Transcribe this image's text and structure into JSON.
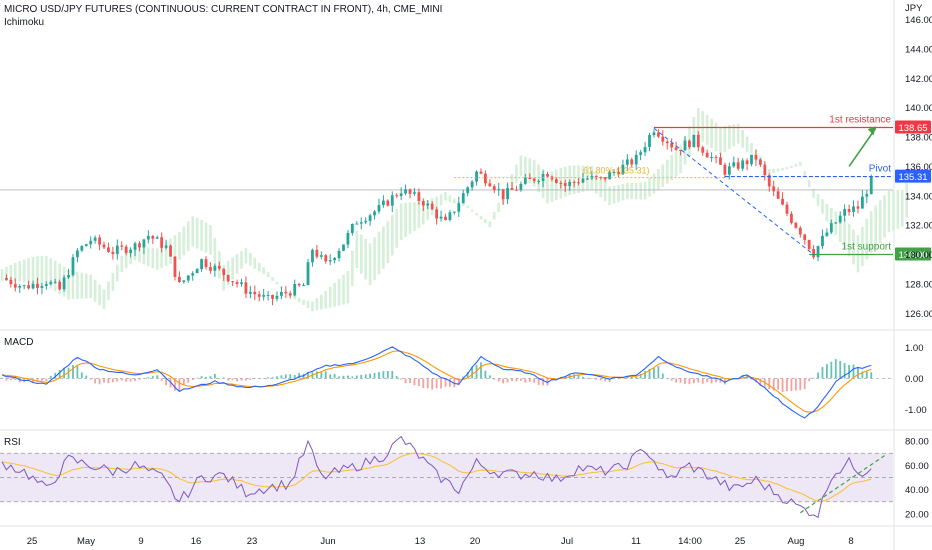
{
  "header": {
    "title": "MICRO USD/JPY FUTURES (CONTINUOUS: CURRENT CONTRACT IN FRONT), 4h, CME_MINI",
    "indicator": "Ichimoku",
    "currency": "JPY"
  },
  "panels": {
    "macd_label": "MACD",
    "rsi_label": "RSI"
  },
  "colors": {
    "up": "#26a69a",
    "down": "#ef5350",
    "resistance": "#f23645",
    "pivot": "#2962ff",
    "support": "#43a047",
    "macd_line": "#2962ff",
    "signal_line": "#ff9800",
    "rsi_line": "#7e57c2",
    "rsi_ma": "#fbc02d",
    "rsi_band": "#ede7f6",
    "cloud_bull": "#d5efd8",
    "cloud_bear": "#fbd9d9",
    "fib": "#f0b429",
    "arrow": "#43a047"
  },
  "chart_data": {
    "type": "candlestick",
    "title": "MICRO USD/JPY FUTURES (CONTINUOUS: CURRENT CONTRACT IN FRONT), 4h, CME_MINI",
    "y_axis": {
      "unit": "JPY",
      "ticks": [
        "146.00",
        "144.00",
        "142.00",
        "140.00",
        "138.00",
        "136.00",
        "134.00",
        "132.00",
        "130.00",
        "128.00",
        "126.00"
      ],
      "range": [
        125.2,
        147.2
      ]
    },
    "x_axis": {
      "ticks": [
        "25",
        "May",
        "9",
        "16",
        "23",
        "Jun",
        "13",
        "20",
        "Jul",
        "11",
        "14:00",
        "25",
        "Aug",
        "8"
      ],
      "range": [
        0,
        200
      ]
    },
    "price_anchors": [
      [
        0,
        128.4
      ],
      [
        5,
        127.8
      ],
      [
        10,
        128.2
      ],
      [
        13,
        127.6
      ],
      [
        17,
        130.2
      ],
      [
        20,
        131.0
      ],
      [
        25,
        130.2
      ],
      [
        30,
        130.6
      ],
      [
        33,
        131.3
      ],
      [
        37,
        130.5
      ],
      [
        40,
        127.9
      ],
      [
        45,
        129.6
      ],
      [
        50,
        128.7
      ],
      [
        55,
        127.6
      ],
      [
        60,
        126.9
      ],
      [
        68,
        127.9
      ],
      [
        70,
        130.4
      ],
      [
        73,
        129.3
      ],
      [
        77,
        130.8
      ],
      [
        80,
        132.3
      ],
      [
        85,
        133.1
      ],
      [
        90,
        134.4
      ],
      [
        95,
        133.6
      ],
      [
        100,
        132.1
      ],
      [
        103,
        133.6
      ],
      [
        107,
        135.6
      ],
      [
        110,
        135.0
      ],
      [
        113,
        134.0
      ],
      [
        118,
        134.9
      ],
      [
        123,
        135.6
      ],
      [
        127,
        134.7
      ],
      [
        131,
        135.2
      ],
      [
        135,
        135.1
      ],
      [
        139,
        135.8
      ],
      [
        143,
        136.5
      ],
      [
        147,
        138.6
      ],
      [
        152,
        137.2
      ],
      [
        156,
        137.8
      ],
      [
        160,
        136.6
      ],
      [
        163,
        135.7
      ],
      [
        167,
        136.2
      ],
      [
        170,
        136.6
      ],
      [
        173,
        134.6
      ],
      [
        176,
        133.2
      ],
      [
        180,
        131.6
      ],
      [
        183,
        130.1
      ],
      [
        186,
        131.5
      ],
      [
        190,
        132.9
      ],
      [
        193,
        133.2
      ],
      [
        196,
        135.0
      ]
    ],
    "levels": [
      {
        "label": "1st resistance",
        "value": "138.65"
      },
      {
        "label": "Pivot",
        "value": "135.31"
      },
      {
        "label": "1st support",
        "value": "130.00"
      }
    ],
    "current_price": 134.4,
    "fib_annotation": "61.80% (135.31)",
    "macd": {
      "axis_ticks": [
        "1.00",
        "0.00",
        "-1.00"
      ],
      "range": [
        -1.5,
        1.4
      ],
      "anchors": [
        [
          0,
          0.1
        ],
        [
          10,
          -0.2
        ],
        [
          17,
          0.7
        ],
        [
          22,
          0.3
        ],
        [
          30,
          0.1
        ],
        [
          35,
          0.3
        ],
        [
          40,
          -0.4
        ],
        [
          48,
          -0.1
        ],
        [
          55,
          -0.3
        ],
        [
          62,
          -0.2
        ],
        [
          68,
          0.1
        ],
        [
          73,
          0.4
        ],
        [
          80,
          0.5
        ],
        [
          88,
          1.0
        ],
        [
          93,
          0.6
        ],
        [
          98,
          0.1
        ],
        [
          103,
          -0.2
        ],
        [
          108,
          0.7
        ],
        [
          113,
          0.3
        ],
        [
          118,
          0.2
        ],
        [
          123,
          -0.1
        ],
        [
          130,
          0.2
        ],
        [
          137,
          0.0
        ],
        [
          143,
          0.1
        ],
        [
          148,
          0.7
        ],
        [
          153,
          0.3
        ],
        [
          158,
          0.1
        ],
        [
          163,
          -0.1
        ],
        [
          168,
          0.1
        ],
        [
          172,
          -0.3
        ],
        [
          176,
          -0.8
        ],
        [
          181,
          -1.3
        ],
        [
          184,
          -0.9
        ],
        [
          188,
          -0.1
        ],
        [
          192,
          0.3
        ],
        [
          196,
          0.4
        ]
      ]
    },
    "rsi": {
      "axis_ticks": [
        "80.00",
        "60.00",
        "40.00",
        "20.00"
      ],
      "range": [
        15,
        85
      ],
      "bands": [
        70,
        50,
        30
      ],
      "anchors": [
        [
          0,
          62
        ],
        [
          5,
          55
        ],
        [
          10,
          40
        ],
        [
          15,
          65
        ],
        [
          20,
          60
        ],
        [
          25,
          55
        ],
        [
          30,
          60
        ],
        [
          36,
          50
        ],
        [
          40,
          30
        ],
        [
          45,
          50
        ],
        [
          50,
          52
        ],
        [
          55,
          38
        ],
        [
          60,
          42
        ],
        [
          65,
          45
        ],
        [
          69,
          78
        ],
        [
          72,
          50
        ],
        [
          77,
          56
        ],
        [
          82,
          62
        ],
        [
          86,
          68
        ],
        [
          90,
          82
        ],
        [
          94,
          68
        ],
        [
          98,
          52
        ],
        [
          103,
          40
        ],
        [
          107,
          62
        ],
        [
          111,
          55
        ],
        [
          116,
          52
        ],
        [
          120,
          54
        ],
        [
          125,
          48
        ],
        [
          130,
          58
        ],
        [
          135,
          55
        ],
        [
          140,
          58
        ],
        [
          145,
          74
        ],
        [
          150,
          48
        ],
        [
          155,
          60
        ],
        [
          160,
          50
        ],
        [
          165,
          40
        ],
        [
          170,
          48
        ],
        [
          175,
          36
        ],
        [
          180,
          25
        ],
        [
          184,
          20
        ],
        [
          187,
          52
        ],
        [
          191,
          62
        ],
        [
          194,
          54
        ],
        [
          196,
          60
        ]
      ]
    }
  }
}
